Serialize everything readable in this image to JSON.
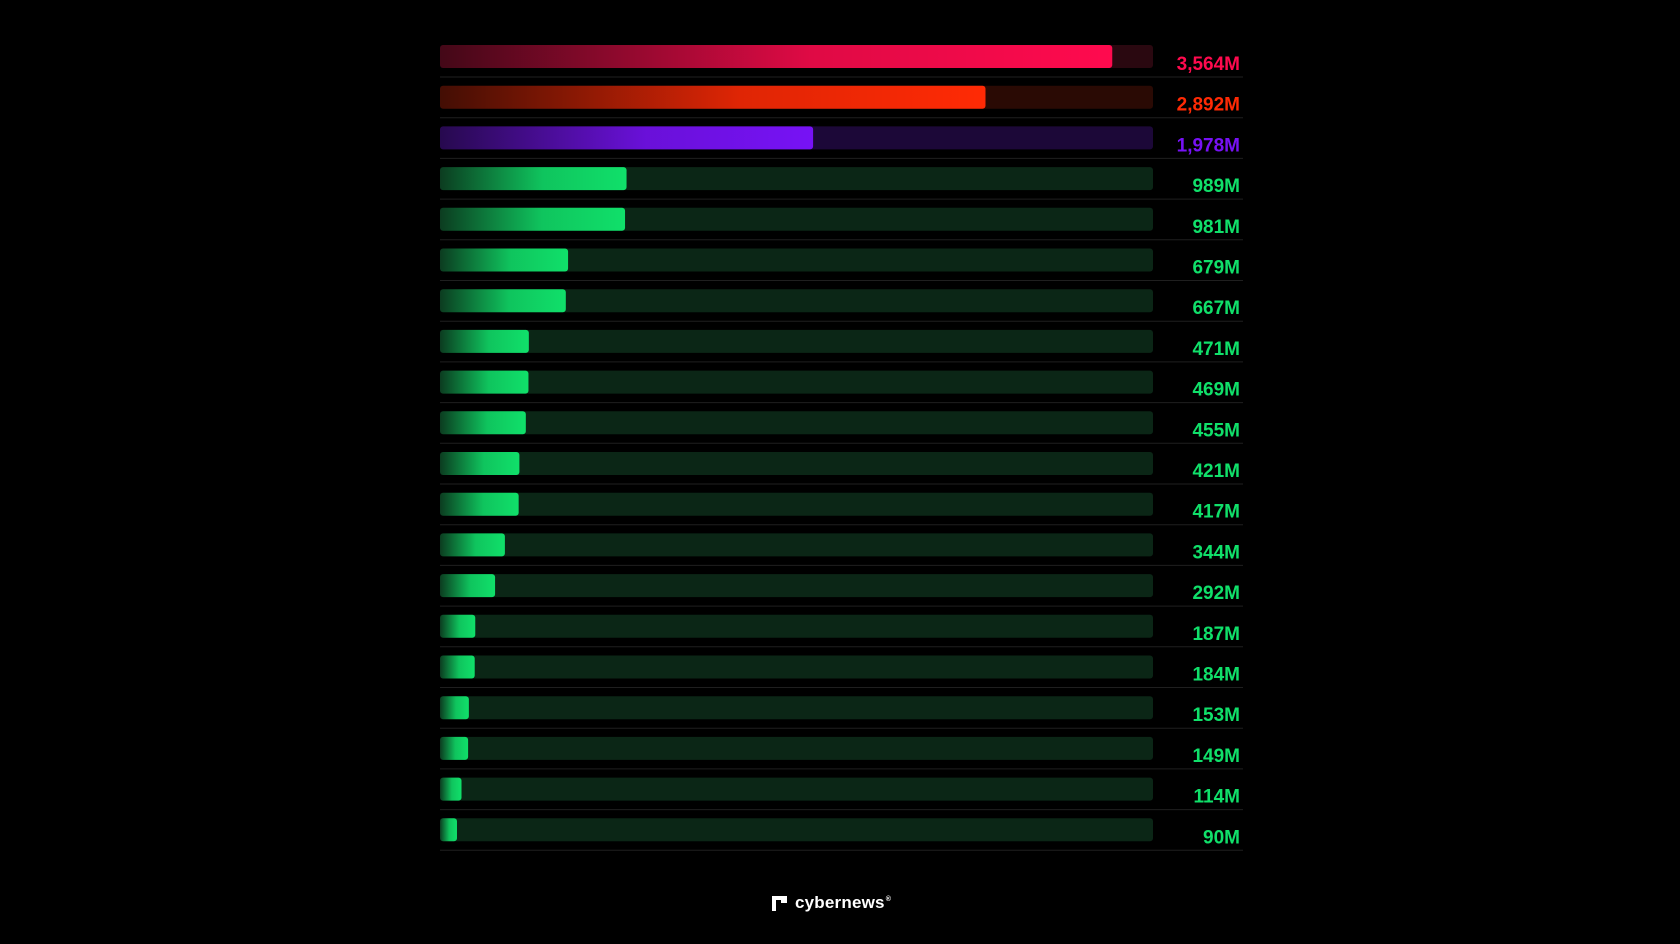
{
  "chart_data": {
    "type": "bar",
    "orientation": "horizontal",
    "xlim": [
      0,
      3780
    ],
    "grid": false,
    "values": [
      3564,
      2892,
      1978,
      989,
      981,
      679,
      667,
      471,
      469,
      455,
      421,
      417,
      344,
      292,
      187,
      184,
      153,
      149,
      114,
      90
    ],
    "labels": [
      "3,564M",
      "2,892M",
      "1,978M",
      "989M",
      "981M",
      "679M",
      "667M",
      "471M",
      "469M",
      "455M",
      "421M",
      "417M",
      "344M",
      "292M",
      "187M",
      "184M",
      "153M",
      "149M",
      "114M",
      "90M"
    ],
    "colors": [
      "#ff0a4e",
      "#ff2a05",
      "#7712f5",
      "#10e06a",
      "#10e06a",
      "#10e06a",
      "#10e06a",
      "#10e06a",
      "#10e06a",
      "#10e06a",
      "#10e06a",
      "#10e06a",
      "#10e06a",
      "#10e06a",
      "#10e06a",
      "#10e06a",
      "#10e06a",
      "#10e06a",
      "#10e06a",
      "#10e06a"
    ],
    "track_colors": [
      "#2a0810",
      "#2a0a04",
      "#1c0838",
      "#0b2616",
      "#0b2616",
      "#0b2616",
      "#0b2616",
      "#0b2616",
      "#0b2616",
      "#0b2616",
      "#0b2616",
      "#0b2616",
      "#0b2616",
      "#0b2616",
      "#0b2616",
      "#0b2616",
      "#0b2616",
      "#0b2616",
      "#0b2616",
      "#0b2616"
    ]
  },
  "branding": {
    "logo_text": "cybernews",
    "logo_mark": "®",
    "logo_icon": "cybernews-logo-icon"
  }
}
